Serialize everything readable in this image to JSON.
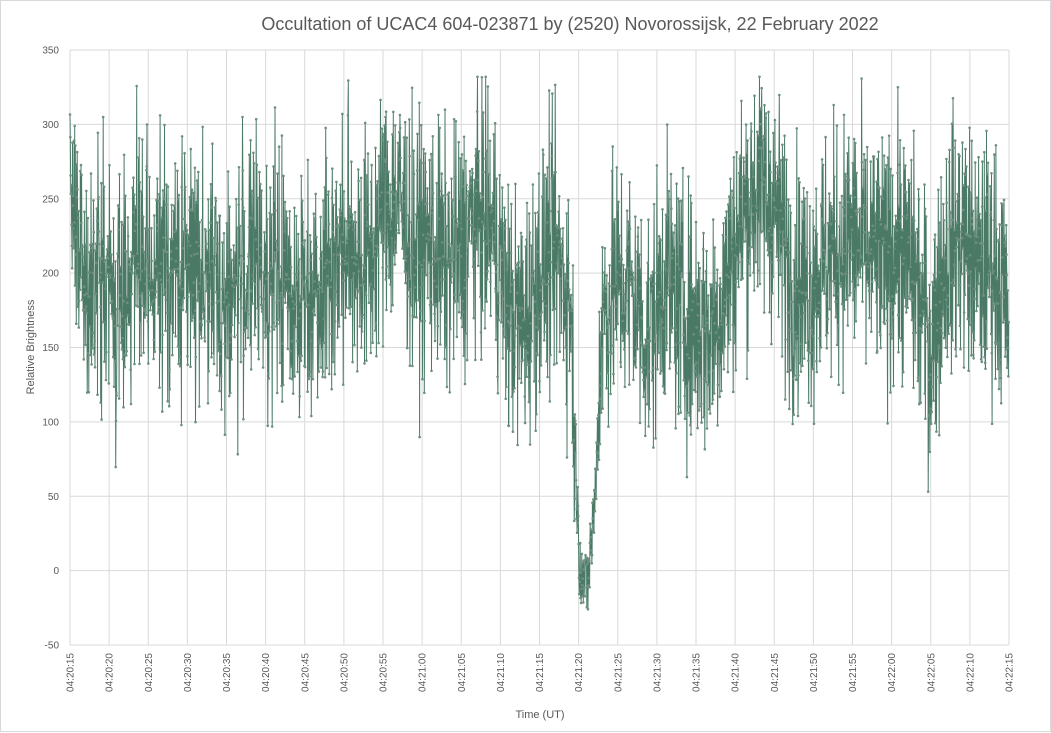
{
  "chart_data": {
    "type": "line",
    "title": "Occultation of UCAC4 604-023871 by (2520) Novorossijsk, 22 February 2022",
    "xlabel": "Time (UT)",
    "ylabel": "Relative Brightness",
    "ylim": [
      -50,
      350
    ],
    "yticks": [
      -50,
      0,
      50,
      100,
      150,
      200,
      250,
      300,
      350
    ],
    "xlim": [
      "04:20:15",
      "04:22:15"
    ],
    "xticks": [
      "04:20:15",
      "04:20:20",
      "04:20:25",
      "04:20:30",
      "04:20:35",
      "04:20:40",
      "04:20:45",
      "04:20:50",
      "04:20:55",
      "04:21:00",
      "04:21:05",
      "04:21:10",
      "04:21:15",
      "04:21:20",
      "04:21:25",
      "04:21:30",
      "04:21:35",
      "04:21:40",
      "04:21:45",
      "04:21:50",
      "04:21:55",
      "04:22:00",
      "04:22:05",
      "04:22:10",
      "04:22:15"
    ],
    "grid": true,
    "legend": "none",
    "series": [
      {
        "color": "#4a7a66",
        "marker": "circle",
        "sample_interval_s": 0.04,
        "x": [
          "04:20:15",
          "04:20:17",
          "04:20:19",
          "04:20:21",
          "04:20:23",
          "04:20:25",
          "04:20:27",
          "04:20:29",
          "04:20:31",
          "04:20:33",
          "04:20:35",
          "04:20:37",
          "04:20:39",
          "04:20:41",
          "04:20:43",
          "04:20:45",
          "04:20:47",
          "04:20:49",
          "04:20:51",
          "04:20:53",
          "04:20:55",
          "04:20:57",
          "04:20:59",
          "04:21:01",
          "04:21:03",
          "04:21:05",
          "04:21:07",
          "04:21:09",
          "04:21:11",
          "04:21:13",
          "04:21:15",
          "04:21:17",
          "04:21:19",
          "04:21:20",
          "04:21:21",
          "04:21:22",
          "04:21:23",
          "04:21:25",
          "04:21:27",
          "04:21:29",
          "04:21:31",
          "04:21:33",
          "04:21:35",
          "04:21:37",
          "04:21:39",
          "04:21:41",
          "04:21:43",
          "04:21:45",
          "04:21:47",
          "04:21:49",
          "04:21:51",
          "04:21:53",
          "04:21:55",
          "04:21:57",
          "04:21:59",
          "04:22:01",
          "04:22:03",
          "04:22:05",
          "04:22:07",
          "04:22:09",
          "04:22:11",
          "04:22:13",
          "04:22:15"
        ],
        "values": [
          250,
          180,
          205,
          170,
          215,
          190,
          205,
          200,
          210,
          195,
          180,
          200,
          205,
          195,
          190,
          185,
          200,
          210,
          220,
          205,
          240,
          250,
          215,
          220,
          205,
          215,
          240,
          230,
          175,
          165,
          200,
          215,
          180,
          15,
          -15,
          40,
          170,
          195,
          185,
          155,
          200,
          175,
          165,
          160,
          195,
          240,
          260,
          245,
          200,
          190,
          205,
          215,
          225,
          210,
          205,
          220,
          195,
          150,
          215,
          225,
          200,
          210,
          170
        ]
      }
    ]
  }
}
